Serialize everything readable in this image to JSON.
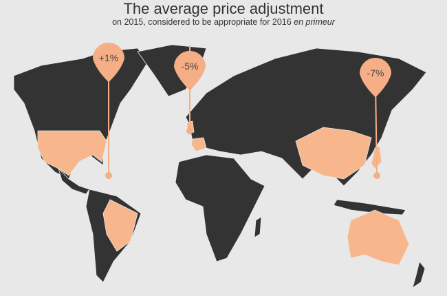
{
  "title": "The average price adjustment",
  "subtitle": "on 2015, considered to be appropriate for 2016",
  "subtitle_italic": "en primeur",
  "colors": {
    "background": "#e8e8e8",
    "land": "#333333",
    "highlight": "#f7b68c",
    "pin": "#f5ae85"
  },
  "pins": [
    {
      "label": "+1%",
      "region": "Americas (USA, Brazil)"
    },
    {
      "label": "-5%",
      "region": "Europe (UK, France)"
    },
    {
      "label": "-7%",
      "region": "Asia-Pacific (China, Japan, Australia)"
    }
  ]
}
